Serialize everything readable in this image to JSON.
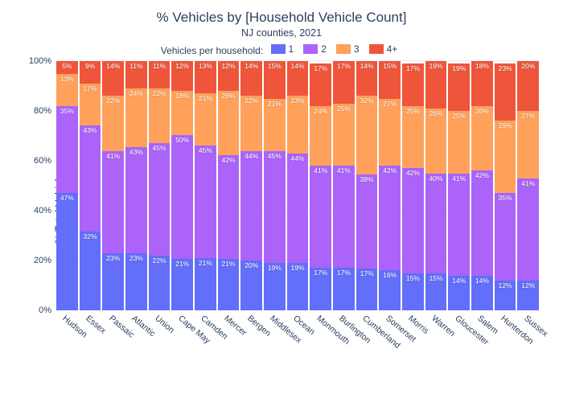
{
  "chart": {
    "title": "% Vehicles by [Household Vehicle Count]",
    "subtitle": "NJ counties, 2021",
    "ylabel": "% Total Vehicles",
    "legend_title": "Vehicles per household:",
    "series": [
      {
        "key": "1",
        "color": "#636efa"
      },
      {
        "key": "2",
        "color": "#ab63fa"
      },
      {
        "key": "3",
        "color": "#ffa15a"
      },
      {
        "key": "4+",
        "color": "#ef553b"
      }
    ],
    "ylim": [
      0,
      100
    ],
    "ytick_step": 20,
    "ytick_suffix": "%",
    "grid_color": "#e5ecf6",
    "background": "#ffffff",
    "value_suffix": "%",
    "categories": [
      {
        "name": "Hudson",
        "values": [
          47,
          35,
          13,
          5
        ]
      },
      {
        "name": "Essex",
        "values": [
          32,
          43,
          17,
          9
        ]
      },
      {
        "name": "Passaic",
        "values": [
          23,
          41,
          22,
          14
        ]
      },
      {
        "name": "Atlantic",
        "values": [
          23,
          43,
          24,
          11
        ]
      },
      {
        "name": "Union",
        "values": [
          22,
          45,
          22,
          11
        ]
      },
      {
        "name": "Cape May",
        "values": [
          21,
          50,
          18,
          12
        ]
      },
      {
        "name": "Camden",
        "values": [
          21,
          45,
          21,
          13
        ]
      },
      {
        "name": "Mercer",
        "values": [
          21,
          42,
          26,
          12
        ]
      },
      {
        "name": "Bergen",
        "values": [
          20,
          44,
          22,
          14
        ]
      },
      {
        "name": "Middlesex",
        "values": [
          19,
          45,
          21,
          15
        ]
      },
      {
        "name": "Ocean",
        "values": [
          19,
          44,
          23,
          14
        ]
      },
      {
        "name": "Monmouth",
        "values": [
          17,
          41,
          24,
          17
        ]
      },
      {
        "name": "Burlington",
        "values": [
          17,
          41,
          25,
          17
        ]
      },
      {
        "name": "Cumberland",
        "values": [
          17,
          38,
          32,
          14
        ]
      },
      {
        "name": "Somerset",
        "values": [
          16,
          42,
          27,
          15
        ]
      },
      {
        "name": "Morris",
        "values": [
          15,
          42,
          25,
          17
        ]
      },
      {
        "name": "Warren",
        "values": [
          15,
          40,
          26,
          19
        ]
      },
      {
        "name": "Gloucester",
        "values": [
          14,
          41,
          25,
          19
        ]
      },
      {
        "name": "Salem",
        "values": [
          14,
          42,
          26,
          18
        ]
      },
      {
        "name": "Hunterdon",
        "values": [
          12,
          35,
          29,
          23
        ]
      },
      {
        "name": "Sussex",
        "values": [
          12,
          41,
          27,
          20
        ]
      }
    ]
  }
}
